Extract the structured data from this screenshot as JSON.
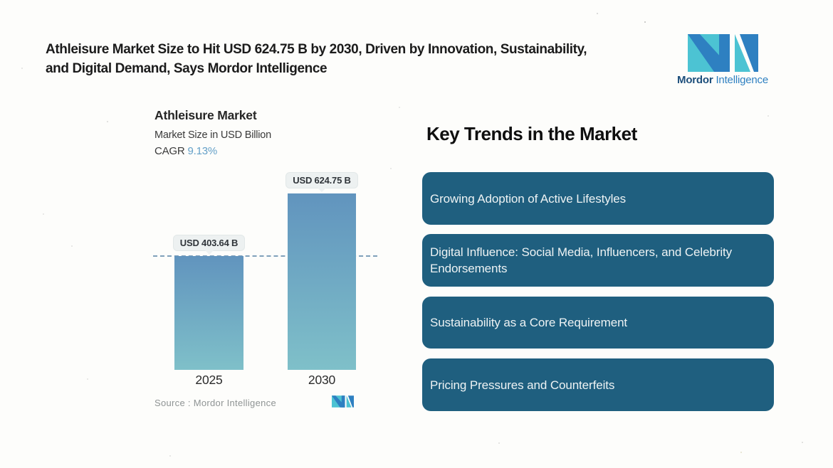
{
  "header": {
    "title_line1": "Athleisure Market Size to Hit USD 624.75 B by 2030, Driven by Innovation, Sustainability,",
    "title_line2": "and Digital Demand, Says Mordor Intelligence"
  },
  "brand": {
    "name_bold": "Mordor",
    "name_light": "Intelligence",
    "mark_teal": "#4cc3d3",
    "mark_blue": "#2e80c1"
  },
  "chart": {
    "title": "Athleisure Market",
    "subtitle": "Market Size in USD Billion",
    "cagr_label": "CAGR",
    "cagr_value": "9.13%",
    "source": "Source :  Mordor Intelligence"
  },
  "chart_data": {
    "type": "bar",
    "title": "Athleisure Market",
    "ylabel": "Market Size in USD Billion",
    "categories": [
      "2025",
      "2030"
    ],
    "values": [
      403.64,
      624.75
    ],
    "value_labels": [
      "USD 403.64 B",
      "USD 624.75 B"
    ],
    "unit": "USD Billion",
    "cagr_percent": 9.13,
    "ylim": [
      0,
      650
    ],
    "grid": false,
    "legend": false,
    "reference_line": 403.64,
    "bar_color_top": "#6194be",
    "bar_color_bottom": "#7fc0c9",
    "dashed_line_color": "#7fa0ba"
  },
  "trends": {
    "heading": "Key Trends in the Market",
    "card_color": "#1f5f7f",
    "items": [
      "Growing Adoption of Active Lifestyles",
      "Digital Influence: Social Media, Influencers, and Celebrity Endorsements",
      "Sustainability as a Core Requirement",
      "Pricing Pressures and Counterfeits"
    ]
  }
}
